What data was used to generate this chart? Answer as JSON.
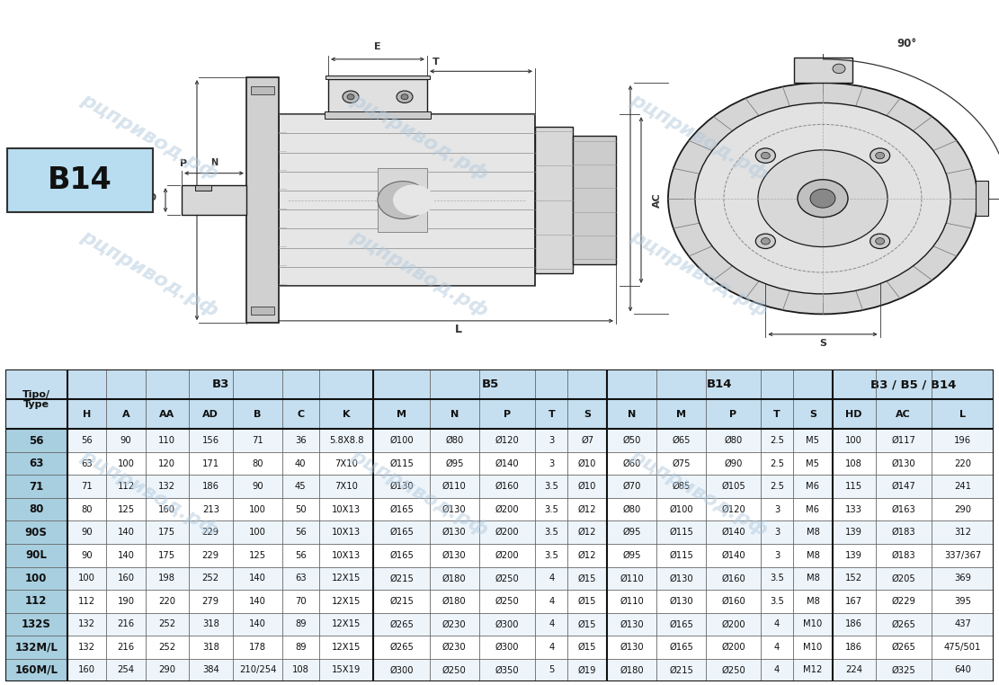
{
  "bg_color": "#ffffff",
  "table_header_bg": "#c5dff0",
  "table_tipo_bg": "#a8cfe0",
  "col_headers": [
    "H",
    "A",
    "AA",
    "AD",
    "B",
    "C",
    "K",
    "M",
    "N",
    "P",
    "T",
    "S",
    "N",
    "M",
    "P",
    "T",
    "S",
    "HD",
    "AC",
    "L"
  ],
  "rows": [
    [
      "56",
      "56",
      "90",
      "110",
      "156",
      "71",
      "36",
      "5.8X8.8",
      "Ø100",
      "Ø80",
      "Ø120",
      "3",
      "Ø7",
      "Ø50",
      "Ø65",
      "Ø80",
      "2.5",
      "M5",
      "100",
      "Ø117",
      "196"
    ],
    [
      "63",
      "63",
      "100",
      "120",
      "171",
      "80",
      "40",
      "7X10",
      "Ø115",
      "Ø95",
      "Ø140",
      "3",
      "Ø10",
      "Ø60",
      "Ø75",
      "Ø90",
      "2.5",
      "M5",
      "108",
      "Ø130",
      "220"
    ],
    [
      "71",
      "71",
      "112",
      "132",
      "186",
      "90",
      "45",
      "7X10",
      "Ø130",
      "Ø110",
      "Ø160",
      "3.5",
      "Ø10",
      "Ø70",
      "Ø85",
      "Ø105",
      "2.5",
      "M6",
      "115",
      "Ø147",
      "241"
    ],
    [
      "80",
      "80",
      "125",
      "160",
      "213",
      "100",
      "50",
      "10X13",
      "Ø165",
      "Ø130",
      "Ø200",
      "3.5",
      "Ø12",
      "Ø80",
      "Ø100",
      "Ø120",
      "3",
      "M6",
      "133",
      "Ø163",
      "290"
    ],
    [
      "90S",
      "90",
      "140",
      "175",
      "229",
      "100",
      "56",
      "10X13",
      "Ø165",
      "Ø130",
      "Ø200",
      "3.5",
      "Ø12",
      "Ø95",
      "Ø115",
      "Ø140",
      "3",
      "M8",
      "139",
      "Ø183",
      "312"
    ],
    [
      "90L",
      "90",
      "140",
      "175",
      "229",
      "125",
      "56",
      "10X13",
      "Ø165",
      "Ø130",
      "Ø200",
      "3.5",
      "Ø12",
      "Ø95",
      "Ø115",
      "Ø140",
      "3",
      "M8",
      "139",
      "Ø183",
      "337/367"
    ],
    [
      "100",
      "100",
      "160",
      "198",
      "252",
      "140",
      "63",
      "12X15",
      "Ø215",
      "Ø180",
      "Ø250",
      "4",
      "Ø15",
      "Ø110",
      "Ø130",
      "Ø160",
      "3.5",
      "M8",
      "152",
      "Ø205",
      "369"
    ],
    [
      "112",
      "112",
      "190",
      "220",
      "279",
      "140",
      "70",
      "12X15",
      "Ø215",
      "Ø180",
      "Ø250",
      "4",
      "Ø15",
      "Ø110",
      "Ø130",
      "Ø160",
      "3.5",
      "M8",
      "167",
      "Ø229",
      "395"
    ],
    [
      "132S",
      "132",
      "216",
      "252",
      "318",
      "140",
      "89",
      "12X15",
      "Ø265",
      "Ø230",
      "Ø300",
      "4",
      "Ø15",
      "Ø130",
      "Ø165",
      "Ø200",
      "4",
      "M10",
      "186",
      "Ø265",
      "437"
    ],
    [
      "132M/L",
      "132",
      "216",
      "252",
      "318",
      "178",
      "89",
      "12X15",
      "Ø265",
      "Ø230",
      "Ø300",
      "4",
      "Ø15",
      "Ø130",
      "Ø165",
      "Ø200",
      "4",
      "M10",
      "186",
      "Ø265",
      "475/501"
    ],
    [
      "160M/L",
      "160",
      "254",
      "290",
      "384",
      "210/254",
      "108",
      "15X19",
      "Ø300",
      "Ø250",
      "Ø350",
      "5",
      "Ø19",
      "Ø180",
      "Ø215",
      "Ø250",
      "4",
      "M12",
      "224",
      "Ø325",
      "640"
    ]
  ],
  "watermark": "рцпривод.рф"
}
